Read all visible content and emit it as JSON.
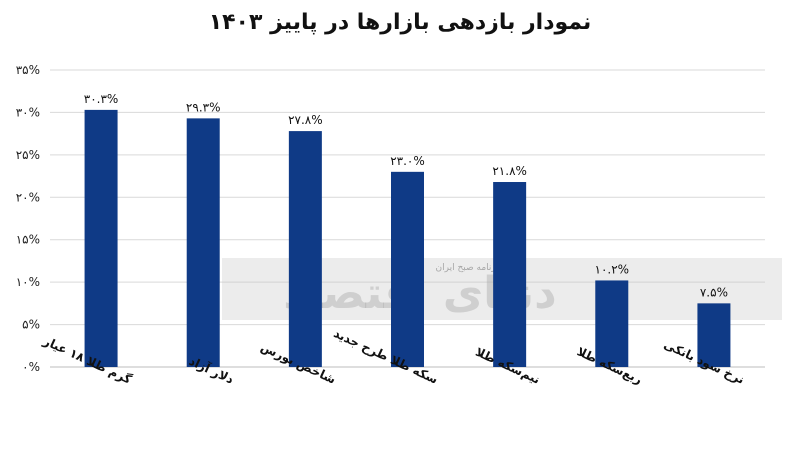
{
  "chart_data": {
    "type": "bar",
    "title": "نمودار بازدهی بازارها در پاییز ۱۴۰۳",
    "categories": [
      "گرم طلا ۱۸ عیار",
      "دلار آزاد",
      "شاخص بورس",
      "سکه طلا طرح جدید",
      "نیم‌سکه طلا",
      "ربع‌سکه طلا",
      "نرخ سود بانکی"
    ],
    "values": [
      30.3,
      29.3,
      27.8,
      23.0,
      21.8,
      10.2,
      7.5
    ],
    "value_labels": [
      "۳۰.۳%",
      "۲۹.۳%",
      "۲۷.۸%",
      "۲۳.۰%",
      "۲۱.۸%",
      "۱۰.۲%",
      "۷.۵%"
    ],
    "y_ticks": [
      0,
      5,
      10,
      15,
      20,
      25,
      30,
      35
    ],
    "y_tick_labels": [
      "۰%",
      "۵%",
      "۱۰%",
      "۱۵%",
      "۲۰%",
      "۲۵%",
      "۳۰%",
      "۳۵%"
    ],
    "ylim": [
      0,
      35
    ],
    "grid": true,
    "bar_color": "#0f3a86",
    "watermark": {
      "text": "دنیای اقتصاد",
      "subtext": "روزنامه صبح ایران"
    }
  }
}
